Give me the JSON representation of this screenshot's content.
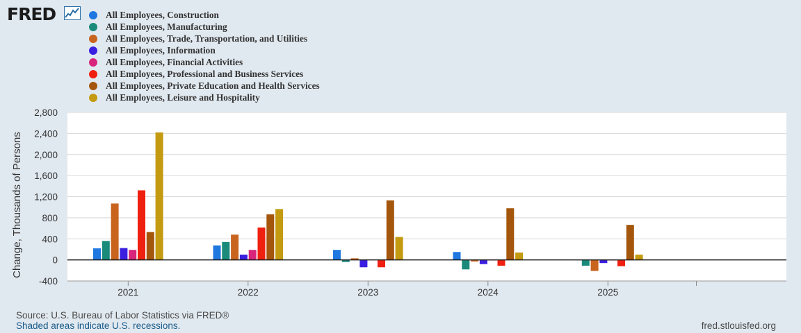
{
  "logo": {
    "text": "FRED"
  },
  "chart_data": {
    "type": "bar",
    "ylabel": "Change, Thousands of Persons",
    "ylim": [
      -400,
      2800
    ],
    "yticks": [
      -400,
      0,
      400,
      800,
      1200,
      1600,
      2000,
      2400,
      2800
    ],
    "ytick_labels": [
      "-400",
      "0",
      "400",
      "800",
      "1,200",
      "1,600",
      "2,000",
      "2,400",
      "2,800"
    ],
    "categories": [
      "2021",
      "2022",
      "2023",
      "2024",
      "2025"
    ],
    "series": [
      {
        "name": "All Employees, Construction",
        "color": "#1f77e0",
        "values": [
          220,
          275,
          190,
          150,
          5
        ]
      },
      {
        "name": "All Employees, Manufacturing",
        "color": "#1a8a7a",
        "values": [
          360,
          340,
          -40,
          -180,
          -110
        ]
      },
      {
        "name": "All Employees, Trade, Transportation, and Utilities",
        "color": "#c8641e",
        "values": [
          1070,
          480,
          30,
          -30,
          -210
        ]
      },
      {
        "name": "All Employees, Information",
        "color": "#3a1fe0",
        "values": [
          225,
          100,
          -140,
          -80,
          -60
        ]
      },
      {
        "name": "All Employees, Financial Activities",
        "color": "#d8247a",
        "values": [
          190,
          190,
          5,
          0,
          0
        ]
      },
      {
        "name": "All Employees, Professional and Business Services",
        "color": "#f02010",
        "values": [
          1320,
          615,
          -140,
          -110,
          -120
        ]
      },
      {
        "name": "All Employees, Private Education and Health Services",
        "color": "#a4560c",
        "values": [
          530,
          865,
          1130,
          980,
          665
        ]
      },
      {
        "name": "All Employees, Leisure and Hospitality",
        "color": "#c49a10",
        "values": [
          2420,
          965,
          435,
          140,
          100
        ]
      }
    ]
  },
  "footer": {
    "source": "Source: U.S. Bureau of Labor Statistics via FRED®",
    "recessions": "Shaded areas indicate U.S. recessions.",
    "site": "fred.stlouisfed.org"
  }
}
